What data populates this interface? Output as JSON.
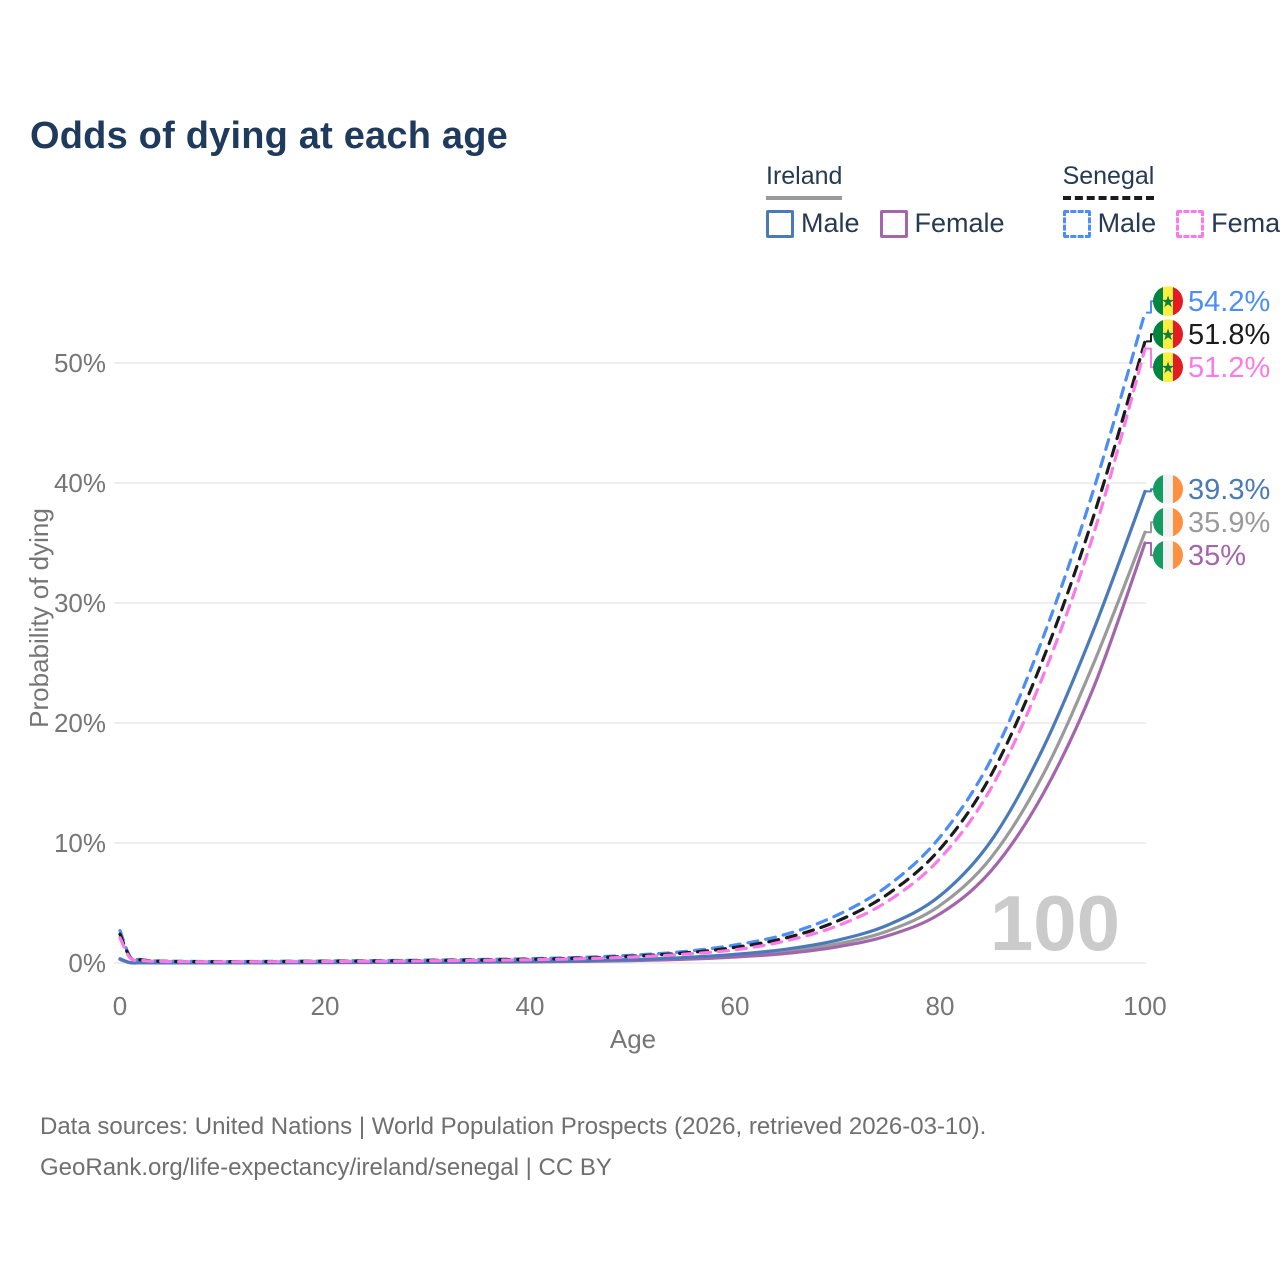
{
  "title": {
    "text": "Odds of dying at each age",
    "color": "#1e3a5c"
  },
  "colors": {
    "accent_title": "#1e3a5c",
    "legend_text": "#263a53",
    "axis_text": "#767676",
    "footer_text": "#6f6f6f",
    "gridline": "#e8e8e8",
    "watermark": "#cbcbcb",
    "ireland_male": "#4a7bb8",
    "ireland_female": "#a466ab",
    "ireland_combined": "#9a9a9a",
    "senegal_male": "#4c8df6",
    "senegal_female": "#fb7ae8",
    "senegal_combined": "#1b1b1b",
    "flag_senegal": [
      "#00853f",
      "#fdef42",
      "#e31b23"
    ],
    "flag_senegal_star": "#0e7c3f",
    "flag_ireland": [
      "#169b62",
      "#f2f2f2",
      "#ff9040"
    ]
  },
  "legend": {
    "groups": [
      {
        "id": "ireland",
        "label": "Ireland",
        "line_style": "solid",
        "swatch_color": "#9a9a9a",
        "items": [
          {
            "id": "ireland-male",
            "label": "Male",
            "color": "#4a7bb8"
          },
          {
            "id": "ireland-female",
            "label": "Female",
            "color": "#a466ab"
          }
        ]
      },
      {
        "id": "senegal",
        "label": "Senegal",
        "line_style": "dashed",
        "swatch_color": "#1b1b1b",
        "items": [
          {
            "id": "senegal-male",
            "label": "Male",
            "color": "#4c8df6"
          },
          {
            "id": "senegal-female",
            "label": "Female",
            "color": "#fb7ae8"
          }
        ]
      }
    ]
  },
  "watermark": "100",
  "chart_data": {
    "type": "line",
    "title": "Odds of dying at each age",
    "xlabel": "Age",
    "ylabel": "Probability of dying",
    "xlim": [
      0,
      100
    ],
    "ylim_percent": [
      0,
      56
    ],
    "x_ticks": [
      0,
      20,
      40,
      60,
      80,
      100
    ],
    "y_ticks": [
      {
        "value": 0,
        "label": "0%"
      },
      {
        "value": 10,
        "label": "10%"
      },
      {
        "value": 20,
        "label": "20%"
      },
      {
        "value": 30,
        "label": "30%"
      },
      {
        "value": 40,
        "label": "40%"
      },
      {
        "value": 50,
        "label": "50%"
      }
    ],
    "grid": "horizontal",
    "legend_position": "top-right",
    "ages": [
      0,
      1,
      2,
      3,
      5,
      10,
      15,
      20,
      25,
      30,
      35,
      40,
      45,
      50,
      55,
      60,
      65,
      70,
      75,
      80,
      85,
      90,
      95,
      100
    ],
    "series": [
      {
        "id": "ireland-combined",
        "name": "Ireland – combined",
        "country": "Ireland",
        "sex": "combined",
        "color": "#9a9a9a",
        "dash": false,
        "flag": "ireland",
        "end_value": 35.9,
        "end_label": "35.9%",
        "values_percent": [
          0.32,
          0.03,
          0.02,
          0.02,
          0.01,
          0.01,
          0.02,
          0.04,
          0.05,
          0.06,
          0.08,
          0.11,
          0.16,
          0.24,
          0.38,
          0.6,
          0.97,
          1.6,
          2.7,
          4.8,
          8.8,
          15.6,
          25.0,
          35.9
        ]
      },
      {
        "id": "ireland-female",
        "name": "Ireland – female",
        "country": "Ireland",
        "sex": "female",
        "color": "#a466ab",
        "dash": false,
        "flag": "ireland",
        "end_value": 35.0,
        "end_label": "35%",
        "values_percent": [
          0.3,
          0.02,
          0.02,
          0.01,
          0.01,
          0.01,
          0.02,
          0.03,
          0.04,
          0.05,
          0.07,
          0.09,
          0.13,
          0.2,
          0.31,
          0.5,
          0.8,
          1.35,
          2.3,
          4.1,
          7.7,
          14.0,
          23.0,
          35.0
        ]
      },
      {
        "id": "ireland-male",
        "name": "Ireland – male",
        "country": "Ireland",
        "sex": "male",
        "color": "#4a7bb8",
        "dash": false,
        "flag": "ireland",
        "end_value": 39.3,
        "end_label": "39.3%",
        "values_percent": [
          0.35,
          0.03,
          0.02,
          0.02,
          0.01,
          0.01,
          0.03,
          0.06,
          0.07,
          0.08,
          0.1,
          0.13,
          0.19,
          0.29,
          0.45,
          0.72,
          1.15,
          1.9,
          3.2,
          5.6,
          10.2,
          17.8,
          27.8,
          39.3
        ]
      },
      {
        "id": "senegal-male",
        "name": "Senegal – male",
        "country": "Senegal",
        "sex": "male",
        "color": "#4c8df6",
        "dash": true,
        "flag": "senegal",
        "end_value": 54.2,
        "end_label": "54.2%",
        "values_percent": [
          2.7,
          0.5,
          0.3,
          0.2,
          0.15,
          0.12,
          0.14,
          0.17,
          0.2,
          0.24,
          0.29,
          0.36,
          0.47,
          0.65,
          0.95,
          1.5,
          2.4,
          4.0,
          6.5,
          10.5,
          17.0,
          27.0,
          39.5,
          54.2
        ]
      },
      {
        "id": "senegal-combined",
        "name": "Senegal – combined",
        "country": "Senegal",
        "sex": "combined",
        "color": "#1b1b1b",
        "dash": true,
        "flag": "senegal",
        "end_value": 51.8,
        "end_label": "51.8%",
        "values_percent": [
          2.4,
          0.45,
          0.27,
          0.18,
          0.13,
          0.11,
          0.12,
          0.15,
          0.17,
          0.21,
          0.25,
          0.31,
          0.41,
          0.57,
          0.83,
          1.3,
          2.1,
          3.5,
          5.8,
          9.5,
          15.7,
          25.2,
          37.3,
          51.8
        ]
      },
      {
        "id": "senegal-female",
        "name": "Senegal – female",
        "country": "Senegal",
        "sex": "female",
        "color": "#fb7ae8",
        "dash": true,
        "flag": "senegal",
        "end_value": 51.2,
        "end_label": "51.2%",
        "values_percent": [
          2.1,
          0.4,
          0.24,
          0.16,
          0.12,
          0.1,
          0.11,
          0.13,
          0.15,
          0.18,
          0.22,
          0.27,
          0.36,
          0.5,
          0.73,
          1.1,
          1.85,
          3.1,
          5.2,
          8.7,
          14.6,
          23.8,
          35.8,
          51.2
        ]
      }
    ]
  },
  "footer": {
    "line1": "Data sources: United Nations | World Population Prospects (2026, retrieved 2026-03-10).",
    "line2": "GeoRank.org/life-expectancy/ireland/senegal | CC BY"
  }
}
